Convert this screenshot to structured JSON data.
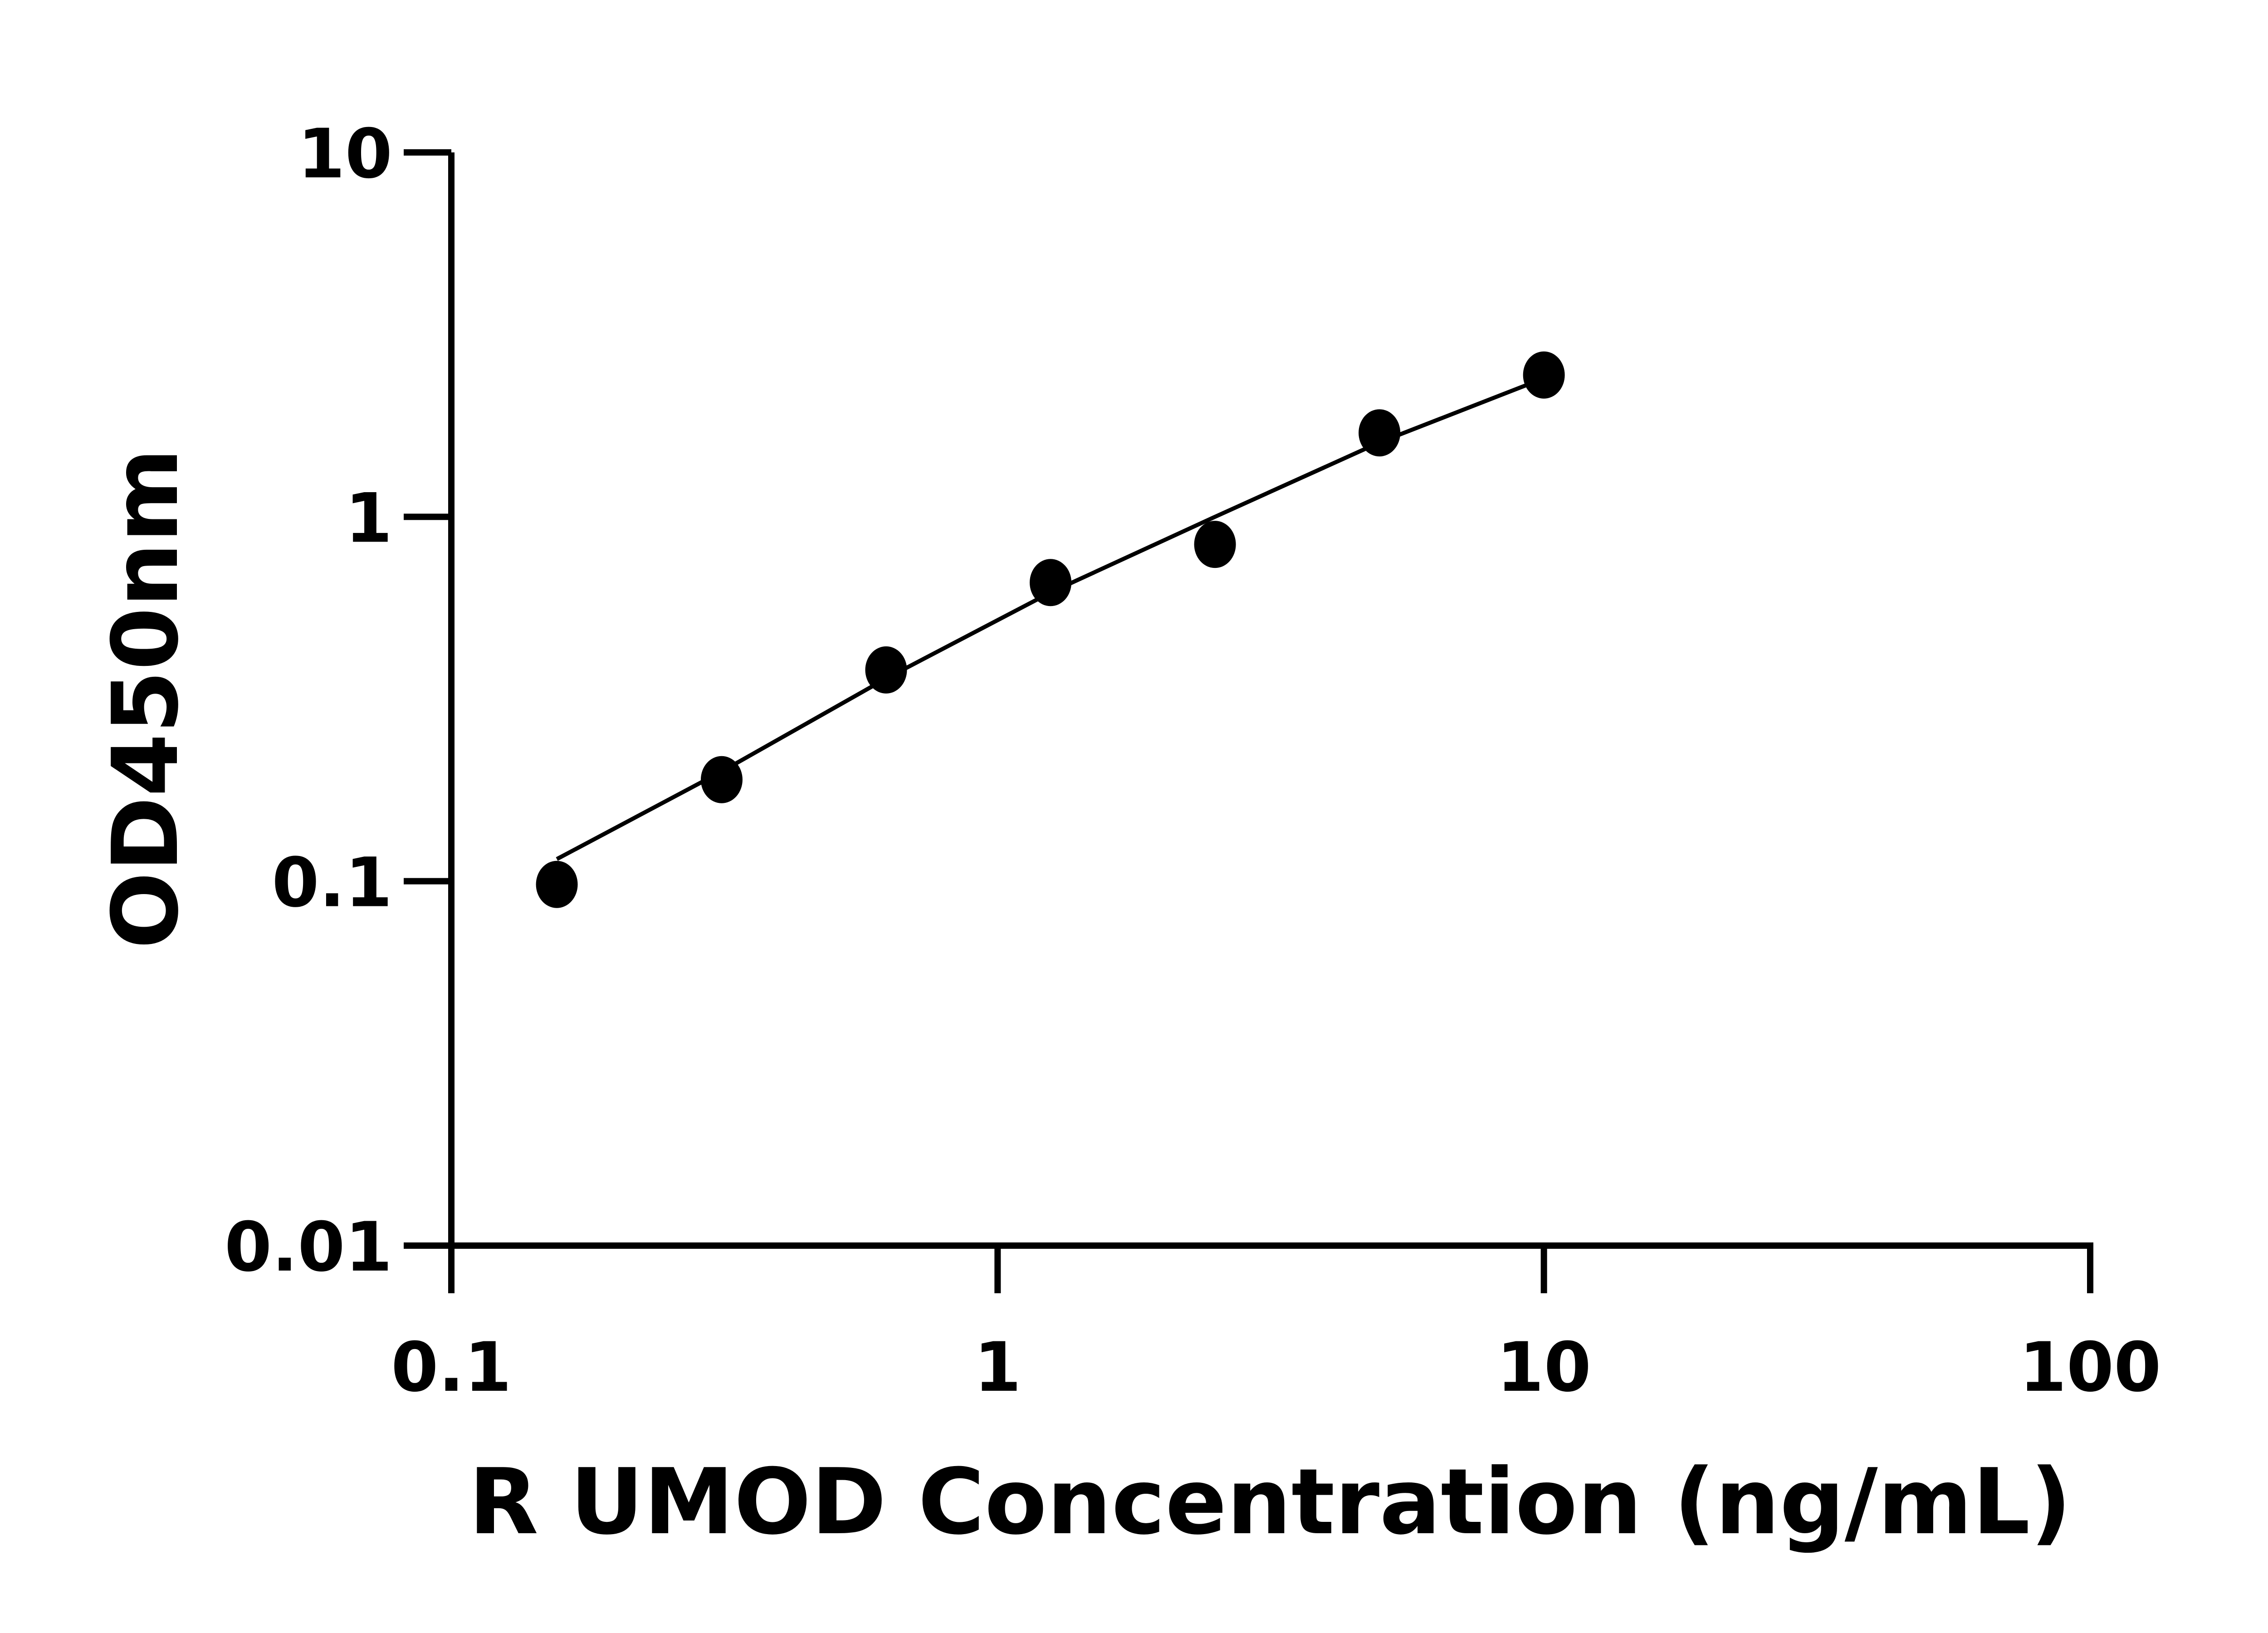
{
  "chart_data": {
    "type": "scatter",
    "title": "",
    "xlabel": "R UMOD Concentration (ng/mL)",
    "ylabel": "OD450nm",
    "x_scale": "log",
    "y_scale": "log",
    "xlim": [
      0.1,
      100
    ],
    "ylim": [
      0.01,
      10
    ],
    "x_ticks": [
      "0.1",
      "1",
      "10",
      "100"
    ],
    "y_ticks": [
      "0.01",
      "0.1",
      "1",
      "10"
    ],
    "grid": false,
    "series": [
      {
        "x": [
          0.156,
          0.3125,
          0.625,
          1.25,
          2.5,
          5,
          10
        ],
        "y": [
          0.098,
          0.19,
          0.38,
          0.66,
          0.84,
          1.7,
          2.45
        ]
      }
    ],
    "fit_curve": {
      "x": [
        0.156,
        0.3125,
        0.625,
        1.25,
        2.5,
        5,
        10
      ],
      "y": [
        0.115,
        0.2,
        0.36,
        0.62,
        1.0,
        1.6,
        2.4
      ]
    },
    "colors": {
      "marker": "#000000",
      "line": "#000000",
      "axis": "#000000"
    }
  }
}
